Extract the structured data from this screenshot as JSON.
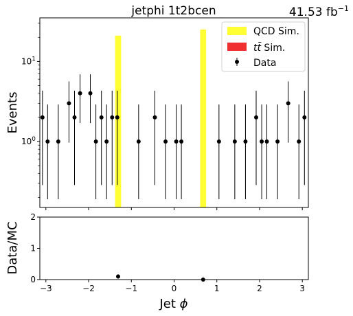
{
  "chart_data": [
    {
      "type": "bar",
      "panel": "main",
      "title": "jetphi  1t2bcen",
      "lumi_label": "41.53 fb",
      "lumi_unit_sup": "−1",
      "ylabel": "Events",
      "xlim": [
        -3.1416,
        3.1416
      ],
      "ylim": [
        0.15,
        35
      ],
      "yscale": "log",
      "y_ticks": [
        {
          "value": 1,
          "base": "10",
          "exp": "0"
        },
        {
          "value": 10,
          "base": "10",
          "exp": "1"
        }
      ],
      "x_ticks": [
        -3,
        -2,
        -1,
        0,
        1,
        2,
        3
      ],
      "legend": {
        "placement": "top-right",
        "entries": [
          {
            "key": "qcd",
            "label": "QCD Sim.",
            "color": "#ffff33"
          },
          {
            "key": "ttbar",
            "label_math": "tt̄",
            "label_rest": " Sim.",
            "color": "#f03030"
          },
          {
            "key": "data",
            "label": "Data",
            "color": "#000000"
          }
        ]
      },
      "series": [
        {
          "name": "QCD Sim.",
          "kind": "histogram",
          "color": "#ffff33",
          "bins": [
            {
              "x_low": -1.38,
              "x_high": -1.24,
              "value": 21
            },
            {
              "x_low": 0.61,
              "x_high": 0.75,
              "value": 25
            }
          ]
        },
        {
          "name": "Data",
          "kind": "errorbar",
          "color": "#000000",
          "x": [
            -3.08,
            -2.96,
            -2.71,
            -2.46,
            -2.33,
            -2.2,
            -1.96,
            -1.83,
            -1.7,
            -1.58,
            -1.45,
            -1.33,
            -0.83,
            -0.45,
            -0.2,
            0.05,
            0.17,
            1.05,
            1.42,
            1.67,
            1.92,
            2.05,
            2.17,
            2.42,
            2.67,
            2.92,
            3.05
          ],
          "y": [
            2,
            1,
            1,
            3,
            2,
            4,
            4,
            1,
            2,
            1,
            2,
            2,
            1,
            2,
            1,
            1,
            1,
            1,
            1,
            1,
            2,
            1,
            1,
            1,
            3,
            1,
            2
          ]
        }
      ]
    },
    {
      "type": "scatter",
      "panel": "ratio",
      "xlabel_text": "Jet ",
      "xlabel_math": "ϕ",
      "ylabel": "Data/MC",
      "xlim": [
        -3.1416,
        3.1416
      ],
      "ylim": [
        0,
        2
      ],
      "x_ticks": [
        -3,
        -2,
        -1,
        0,
        1,
        2,
        3
      ],
      "y_ticks": [
        0,
        1,
        2
      ],
      "series": [
        {
          "name": "Data/MC",
          "color": "#000000",
          "x": [
            -1.31,
            0.68
          ],
          "y": [
            0.1,
            0.0
          ],
          "yerr": [
            0.07,
            0.0
          ]
        }
      ]
    }
  ]
}
